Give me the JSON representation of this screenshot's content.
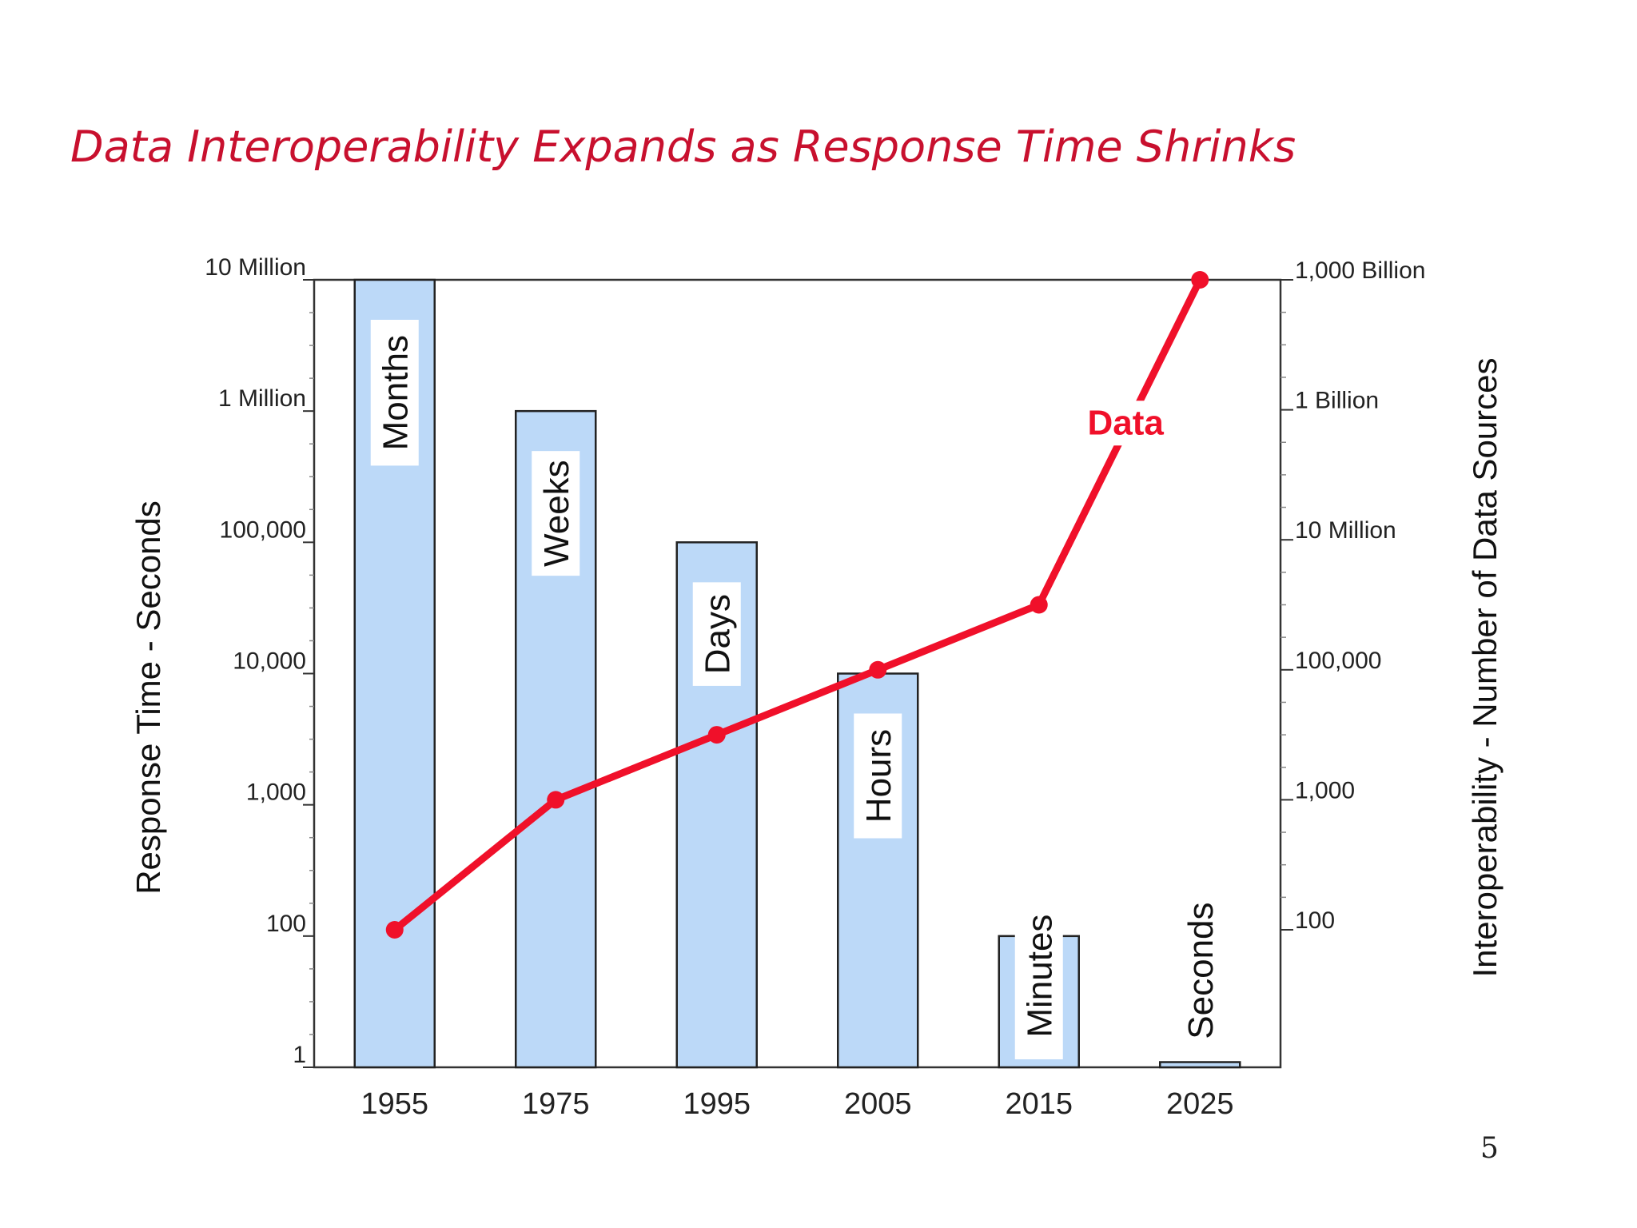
{
  "slide": {
    "title": "Data Interoperability Expands as Response Time Shrinks",
    "page_number": "5"
  },
  "colors": {
    "title": "#c8102e",
    "bar_fill": "#bcd9f8",
    "bar_stroke": "#222222",
    "line": "#f0102a",
    "axis": "#333333"
  },
  "chart_data": {
    "type": "bar",
    "categories": [
      "1955",
      "1975",
      "1995",
      "2005",
      "2015",
      "2025"
    ],
    "left_axis": {
      "label": "Response Time - Seconds",
      "scale": "log",
      "range": [
        1,
        10000000
      ],
      "ticks": [
        {
          "value": 1,
          "label": "1"
        },
        {
          "value": 100,
          "label": "100"
        },
        {
          "value": 1000,
          "label": "1,000"
        },
        {
          "value": 10000,
          "label": "10,000"
        },
        {
          "value": 100000,
          "label": "100,000"
        },
        {
          "value": 1000000,
          "label": "1 Million"
        },
        {
          "value": 10000000,
          "label": "10 Million"
        }
      ]
    },
    "right_axis": {
      "label": "Interoperability - Number of Data Sources",
      "scale": "log",
      "ticks": [
        {
          "value": 100,
          "label": "100"
        },
        {
          "value": 1000,
          "label": "1,000"
        },
        {
          "value": 100000,
          "label": "100,000"
        },
        {
          "value": 10000000,
          "label": "10 Million"
        },
        {
          "value": 1000000000,
          "label": "1 Billion"
        },
        {
          "value": 1000000000000,
          "label": "1,000 Billion"
        }
      ]
    },
    "bars": {
      "values": [
        10000000,
        1000000,
        100000,
        10000,
        100,
        1.2
      ],
      "labels": [
        "Months",
        "Weeks",
        "Days",
        "Hours",
        "Minutes",
        "Seconds"
      ]
    },
    "series": [
      {
        "name": "Data",
        "axis": "right",
        "values": [
          100,
          1000,
          10000,
          100000,
          1000000,
          1000000000000
        ]
      }
    ],
    "grid": false,
    "legend": "none"
  }
}
